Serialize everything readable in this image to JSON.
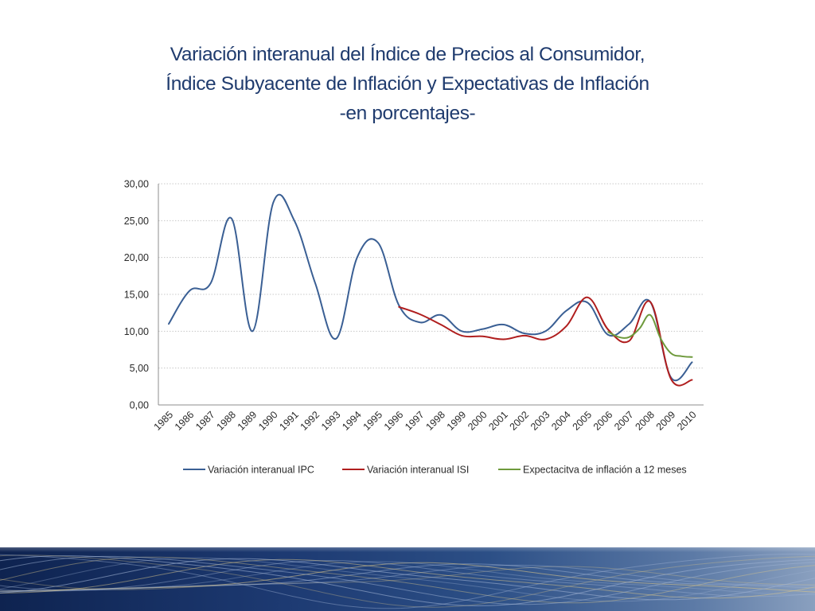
{
  "slide": {
    "title_lines": [
      "Variación interanual del Índice de Precios al Consumidor,",
      "Índice Subyacente de Inflación y Expectativas de Inflación",
      "-en porcentajes-"
    ]
  },
  "chart_data": {
    "type": "line",
    "title": "",
    "xlabel": "",
    "ylabel": "",
    "ylim": [
      0,
      30
    ],
    "y_ticks": [
      "0,00",
      "5,00",
      "10,00",
      "15,00",
      "20,00",
      "25,00",
      "30,00"
    ],
    "categories": [
      "1985",
      "1986",
      "1987",
      "1988",
      "1989",
      "1990",
      "1991",
      "1992",
      "1993",
      "1994",
      "1995",
      "1996",
      "1997",
      "1998",
      "1999",
      "2000",
      "2001",
      "2002",
      "2003",
      "2004",
      "2005",
      "2006",
      "2007",
      "2008",
      "2009",
      "2010"
    ],
    "grid": "horizontal dotted",
    "legend_position": "bottom",
    "series": [
      {
        "name": "Variación interanual IPC",
        "color": "#3a5f94",
        "points": [
          {
            "x": 1985.0,
            "y": 11.0
          },
          {
            "x": 1986.0,
            "y": 15.5
          },
          {
            "x": 1987.0,
            "y": 16.5
          },
          {
            "x": 1988.0,
            "y": 25.3
          },
          {
            "x": 1989.0,
            "y": 10.0
          },
          {
            "x": 1990.0,
            "y": 27.5
          },
          {
            "x": 1991.0,
            "y": 25.0
          },
          {
            "x": 1992.0,
            "y": 16.5
          },
          {
            "x": 1993.0,
            "y": 9.0
          },
          {
            "x": 1994.0,
            "y": 20.0
          },
          {
            "x": 1995.0,
            "y": 22.0
          },
          {
            "x": 1996.0,
            "y": 13.5
          },
          {
            "x": 1997.0,
            "y": 11.2
          },
          {
            "x": 1998.0,
            "y": 12.2
          },
          {
            "x": 1999.0,
            "y": 10.0
          },
          {
            "x": 2000.0,
            "y": 10.3
          },
          {
            "x": 2001.0,
            "y": 10.9
          },
          {
            "x": 2002.0,
            "y": 9.7
          },
          {
            "x": 2003.0,
            "y": 10.0
          },
          {
            "x": 2004.0,
            "y": 12.8
          },
          {
            "x": 2005.0,
            "y": 13.9
          },
          {
            "x": 2006.0,
            "y": 9.5
          },
          {
            "x": 2007.0,
            "y": 11.0
          },
          {
            "x": 2008.0,
            "y": 14.0
          },
          {
            "x": 2009.0,
            "y": 3.7
          },
          {
            "x": 2010.0,
            "y": 5.8
          }
        ]
      },
      {
        "name": "Variación interanual ISI",
        "color": "#b01e1e",
        "points": [
          {
            "x": 1996.0,
            "y": 13.3
          },
          {
            "x": 1997.0,
            "y": 12.3
          },
          {
            "x": 1998.0,
            "y": 10.9
          },
          {
            "x": 1999.0,
            "y": 9.4
          },
          {
            "x": 2000.0,
            "y": 9.3
          },
          {
            "x": 2001.0,
            "y": 8.9
          },
          {
            "x": 2002.0,
            "y": 9.4
          },
          {
            "x": 2003.0,
            "y": 8.9
          },
          {
            "x": 2004.0,
            "y": 10.7
          },
          {
            "x": 2005.0,
            "y": 14.6
          },
          {
            "x": 2006.0,
            "y": 10.2
          },
          {
            "x": 2007.0,
            "y": 8.7
          },
          {
            "x": 2008.0,
            "y": 14.0
          },
          {
            "x": 2009.0,
            "y": 3.5
          },
          {
            "x": 2010.0,
            "y": 3.4
          }
        ]
      },
      {
        "name": "Expectacitva de inflación a 12 meses",
        "color": "#6e9a3c",
        "points": [
          {
            "x": 2006.0,
            "y": 9.9
          },
          {
            "x": 2006.5,
            "y": 9.2
          },
          {
            "x": 2007.0,
            "y": 9.2
          },
          {
            "x": 2007.5,
            "y": 10.4
          },
          {
            "x": 2008.0,
            "y": 12.2
          },
          {
            "x": 2008.5,
            "y": 9.0
          },
          {
            "x": 2009.0,
            "y": 7.0
          },
          {
            "x": 2009.5,
            "y": 6.6
          },
          {
            "x": 2010.0,
            "y": 6.5
          }
        ]
      }
    ]
  }
}
